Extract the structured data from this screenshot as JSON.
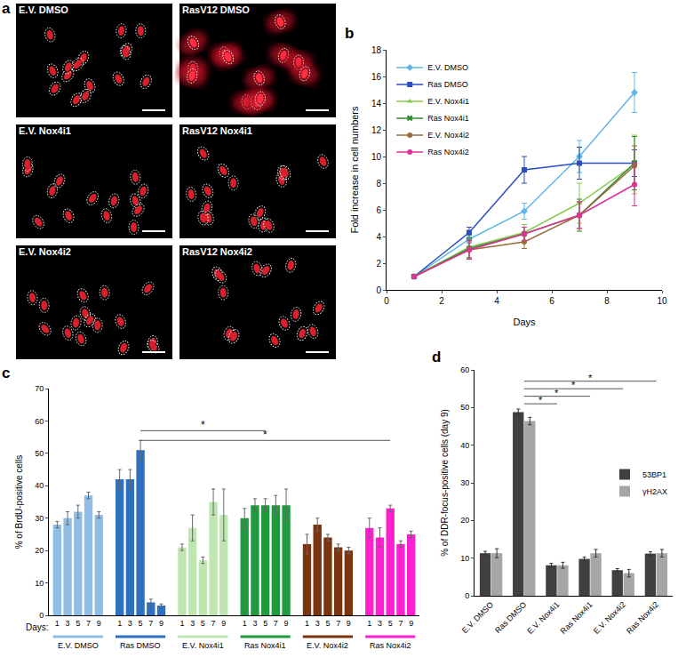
{
  "panel_a": {
    "title": "a",
    "images": [
      {
        "label": "E.V. DMSO"
      },
      {
        "label": "RasV12 DMSO"
      },
      {
        "label": "E.V. Nox4i1"
      },
      {
        "label": "RasV12 Nox4i1"
      },
      {
        "label": "E.V. Nox4i2"
      },
      {
        "label": "RasV12 Nox4i2"
      }
    ]
  },
  "chart_data": [
    {
      "title": "b",
      "type": "line",
      "x": [
        1,
        3,
        5,
        7,
        9
      ],
      "xlabel": "Days",
      "ylabel": "Fold increase in cell numbers",
      "xlim": [
        0,
        10
      ],
      "xticks": [
        0,
        2,
        4,
        6,
        8,
        10
      ],
      "ylim": [
        0,
        18
      ],
      "yticks": [
        0,
        2,
        4,
        6,
        8,
        10,
        12,
        14,
        16,
        18
      ],
      "grid": false,
      "legend": "top-left",
      "series": [
        {
          "name": "E.V. DMSO",
          "color": "#5fb6e8",
          "marker": "diamond",
          "values": [
            1,
            3.8,
            5.9,
            10,
            14.8
          ],
          "errors": [
            0,
            0.3,
            0.6,
            1.2,
            1.5
          ]
        },
        {
          "name": "Ras DMSO",
          "color": "#2b4fc0",
          "marker": "square",
          "values": [
            1,
            4.3,
            9,
            9.5,
            9.5
          ],
          "errors": [
            0,
            0.4,
            1,
            1.2,
            1
          ]
        },
        {
          "name": "E.V. Nox4i1",
          "color": "#86c84a",
          "marker": "triangle-up",
          "values": [
            1,
            3.2,
            4.3,
            6.5,
            9.4
          ],
          "errors": [
            0,
            0.8,
            0.6,
            1.5,
            2.2
          ]
        },
        {
          "name": "Ras Nox4i1",
          "color": "#2e8b30",
          "marker": "x",
          "values": [
            1,
            3.1,
            4.2,
            5.6,
            9.5
          ],
          "errors": [
            0,
            0.7,
            0.5,
            1.2,
            2
          ]
        },
        {
          "name": "E.V. Nox4i2",
          "color": "#9b6b3a",
          "marker": "circle",
          "values": [
            1,
            3,
            3.6,
            5.6,
            9.3
          ],
          "errors": [
            0,
            0.6,
            0.5,
            1,
            1.5
          ]
        },
        {
          "name": "Ras Nox4i2",
          "color": "#e0309a",
          "marker": "circle",
          "values": [
            1,
            3,
            4.2,
            5.6,
            7.9
          ],
          "errors": [
            0,
            0.7,
            0.5,
            1,
            1.6
          ]
        }
      ]
    },
    {
      "title": "c",
      "type": "bar",
      "categories": [
        "1",
        "3",
        "5",
        "7",
        "9"
      ],
      "xlabel": "Days:",
      "ylabel": "% of BrdU-positive cells",
      "ylim": [
        0,
        70
      ],
      "yticks": [
        0,
        10,
        20,
        30,
        40,
        50,
        60,
        70
      ],
      "grid": false,
      "series": [
        {
          "name": "E.V. DMSO",
          "color": "#8fbde6",
          "values": [
            28,
            30,
            32,
            37,
            31
          ],
          "errors": [
            1,
            2,
            2,
            1,
            1
          ]
        },
        {
          "name": "Ras DMSO",
          "color": "#2f6fbf",
          "values": [
            42,
            42,
            51,
            4,
            3
          ],
          "errors": [
            3,
            3,
            3,
            1,
            0.5
          ]
        },
        {
          "name": "E.V. Nox4i1",
          "color": "#bfe6b0",
          "values": [
            21,
            27,
            17,
            35,
            31
          ],
          "errors": [
            1,
            4,
            1,
            4,
            8
          ]
        },
        {
          "name": "Ras Nox4i1",
          "color": "#1f9a3e",
          "values": [
            30,
            34,
            34,
            34,
            34
          ],
          "errors": [
            3,
            2,
            2,
            3,
            5
          ]
        },
        {
          "name": "E.V. Nox4i2",
          "color": "#7a3510",
          "values": [
            22,
            28,
            24,
            21,
            20
          ],
          "errors": [
            3,
            2,
            1,
            1,
            1
          ]
        },
        {
          "name": "Ras Nox4i2",
          "color": "#ff1fd0",
          "values": [
            27,
            24,
            33,
            22,
            25
          ],
          "errors": [
            3,
            3,
            1,
            1,
            1
          ]
        }
      ],
      "significance": [
        {
          "from": "Ras DMSO",
          "to": "Ras Nox4i1",
          "category": "5",
          "y": 57,
          "label": "*"
        },
        {
          "from": "Ras DMSO",
          "to": "Ras Nox4i2",
          "category": "5",
          "y": 54,
          "label": "*"
        }
      ]
    },
    {
      "title": "d",
      "type": "bar",
      "categories": [
        "E.V. DMSO",
        "Ras DMSO",
        "E.V. Nox4i1",
        "Ras Nox4i1",
        "E.V. Nox4i2",
        "Ras Nox4i2"
      ],
      "ylabel": "% of DDR-focus-positive cells (day 9)",
      "ylim": [
        0,
        60
      ],
      "yticks": [
        0,
        10,
        20,
        30,
        40,
        50,
        60
      ],
      "grid": false,
      "legend": "right",
      "series": [
        {
          "name": "53BP1",
          "color": "#404040",
          "values": [
            11.3,
            48.8,
            8.1,
            9.8,
            6.8,
            11.2
          ],
          "errors": [
            0.5,
            0.8,
            0.5,
            0.5,
            0.4,
            0.5
          ]
        },
        {
          "name": "γH2AX",
          "color": "#a6a6a6",
          "values": [
            11.3,
            46.4,
            8.1,
            11.3,
            6.0,
            11.3
          ],
          "errors": [
            1.2,
            1,
            0.8,
            1,
            1,
            1
          ]
        }
      ],
      "significance": [
        {
          "from": "Ras DMSO",
          "to": "Ras Nox4i2",
          "y": 57,
          "label": "*"
        },
        {
          "from": "Ras DMSO",
          "to": "E.V. Nox4i2",
          "y": 55,
          "label": "*"
        },
        {
          "from": "Ras DMSO",
          "to": "Ras Nox4i1",
          "y": 53,
          "label": "*"
        },
        {
          "from": "Ras DMSO",
          "to": "E.V. Nox4i1",
          "y": 51,
          "label": "*"
        }
      ]
    }
  ]
}
